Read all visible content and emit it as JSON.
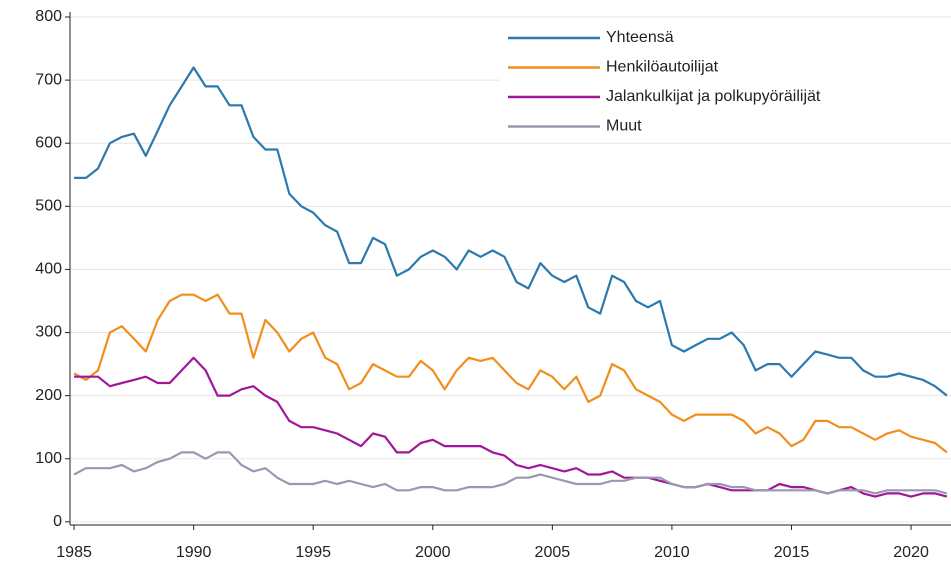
{
  "chart_data": {
    "type": "line",
    "x": [
      1985,
      1985.5,
      1986,
      1986.5,
      1987,
      1987.5,
      1988,
      1988.5,
      1989,
      1989.5,
      1990,
      1990.5,
      1991,
      1991.5,
      1992,
      1992.5,
      1993,
      1993.5,
      1994,
      1994.5,
      1995,
      1995.5,
      1996,
      1996.5,
      1997,
      1997.5,
      1998,
      1998.5,
      1999,
      1999.5,
      2000,
      2000.5,
      2001,
      2001.5,
      2002,
      2002.5,
      2003,
      2003.5,
      2004,
      2004.5,
      2005,
      2005.5,
      2006,
      2006.5,
      2007,
      2007.5,
      2008,
      2008.5,
      2009,
      2009.5,
      2010,
      2010.5,
      2011,
      2011.5,
      2012,
      2012.5,
      2013,
      2013.5,
      2014,
      2014.5,
      2015,
      2015.5,
      2016,
      2016.5,
      2017,
      2017.5,
      2018,
      2018.5,
      2019,
      2019.5,
      2020,
      2020.5,
      2021,
      2021.5
    ],
    "series": [
      {
        "name": "Yhteensä",
        "color": "#2a7ab0",
        "values": [
          545,
          545,
          560,
          600,
          610,
          615,
          580,
          620,
          660,
          690,
          720,
          690,
          690,
          660,
          660,
          610,
          590,
          590,
          520,
          500,
          490,
          470,
          460,
          410,
          410,
          450,
          440,
          390,
          400,
          420,
          430,
          420,
          400,
          430,
          420,
          430,
          420,
          380,
          370,
          410,
          390,
          380,
          390,
          340,
          330,
          390,
          380,
          350,
          340,
          350,
          280,
          270,
          280,
          290,
          290,
          300,
          280,
          240,
          250,
          250,
          230,
          250,
          270,
          265,
          260,
          260,
          240,
          230,
          230,
          235,
          230,
          225,
          215,
          200
        ]
      },
      {
        "name": "Henkilöautoilijat",
        "color": "#f28e1c",
        "values": [
          235,
          225,
          240,
          300,
          310,
          290,
          270,
          320,
          350,
          360,
          360,
          350,
          360,
          330,
          330,
          260,
          320,
          300,
          270,
          290,
          300,
          260,
          250,
          210,
          220,
          250,
          240,
          230,
          230,
          255,
          240,
          210,
          240,
          260,
          255,
          260,
          240,
          220,
          210,
          240,
          230,
          210,
          230,
          190,
          200,
          250,
          240,
          210,
          200,
          190,
          170,
          160,
          170,
          170,
          170,
          170,
          160,
          140,
          150,
          140,
          120,
          130,
          160,
          160,
          150,
          150,
          140,
          130,
          140,
          145,
          135,
          130,
          125,
          110
        ]
      },
      {
        "name": "Jalankulkijat ja polkupyöräilijät",
        "color": "#a0179a",
        "values": [
          230,
          230,
          230,
          215,
          220,
          225,
          230,
          220,
          220,
          240,
          260,
          240,
          200,
          200,
          210,
          215,
          200,
          190,
          160,
          150,
          150,
          145,
          140,
          130,
          120,
          140,
          135,
          110,
          110,
          125,
          130,
          120,
          120,
          120,
          120,
          110,
          105,
          90,
          85,
          90,
          85,
          80,
          85,
          75,
          75,
          80,
          70,
          70,
          70,
          65,
          60,
          55,
          55,
          60,
          55,
          50,
          50,
          50,
          50,
          60,
          55,
          55,
          50,
          45,
          50,
          55,
          45,
          40,
          45,
          45,
          40,
          45,
          45,
          40
        ]
      },
      {
        "name": "Muut",
        "color": "#9a98b0",
        "values": [
          75,
          85,
          85,
          85,
          90,
          80,
          85,
          95,
          100,
          110,
          110,
          100,
          110,
          110,
          90,
          80,
          85,
          70,
          60,
          60,
          60,
          65,
          60,
          65,
          60,
          55,
          60,
          50,
          50,
          55,
          55,
          50,
          50,
          55,
          55,
          55,
          60,
          70,
          70,
          75,
          70,
          65,
          60,
          60,
          60,
          65,
          65,
          70,
          70,
          70,
          60,
          55,
          55,
          60,
          60,
          55,
          55,
          50,
          50,
          50,
          50,
          50,
          50,
          45,
          50,
          50,
          50,
          45,
          50,
          50,
          50,
          50,
          50,
          45
        ]
      }
    ],
    "xlim": [
      1984.83,
      2021.67
    ],
    "xticks": [
      1985,
      1990,
      1995,
      2000,
      2005,
      2010,
      2015,
      2020
    ],
    "ylim": [
      -5,
      800
    ],
    "yticks": [
      0,
      100,
      200,
      300,
      400,
      500,
      600,
      700,
      800
    ],
    "grid": true,
    "legend": "upper right"
  }
}
